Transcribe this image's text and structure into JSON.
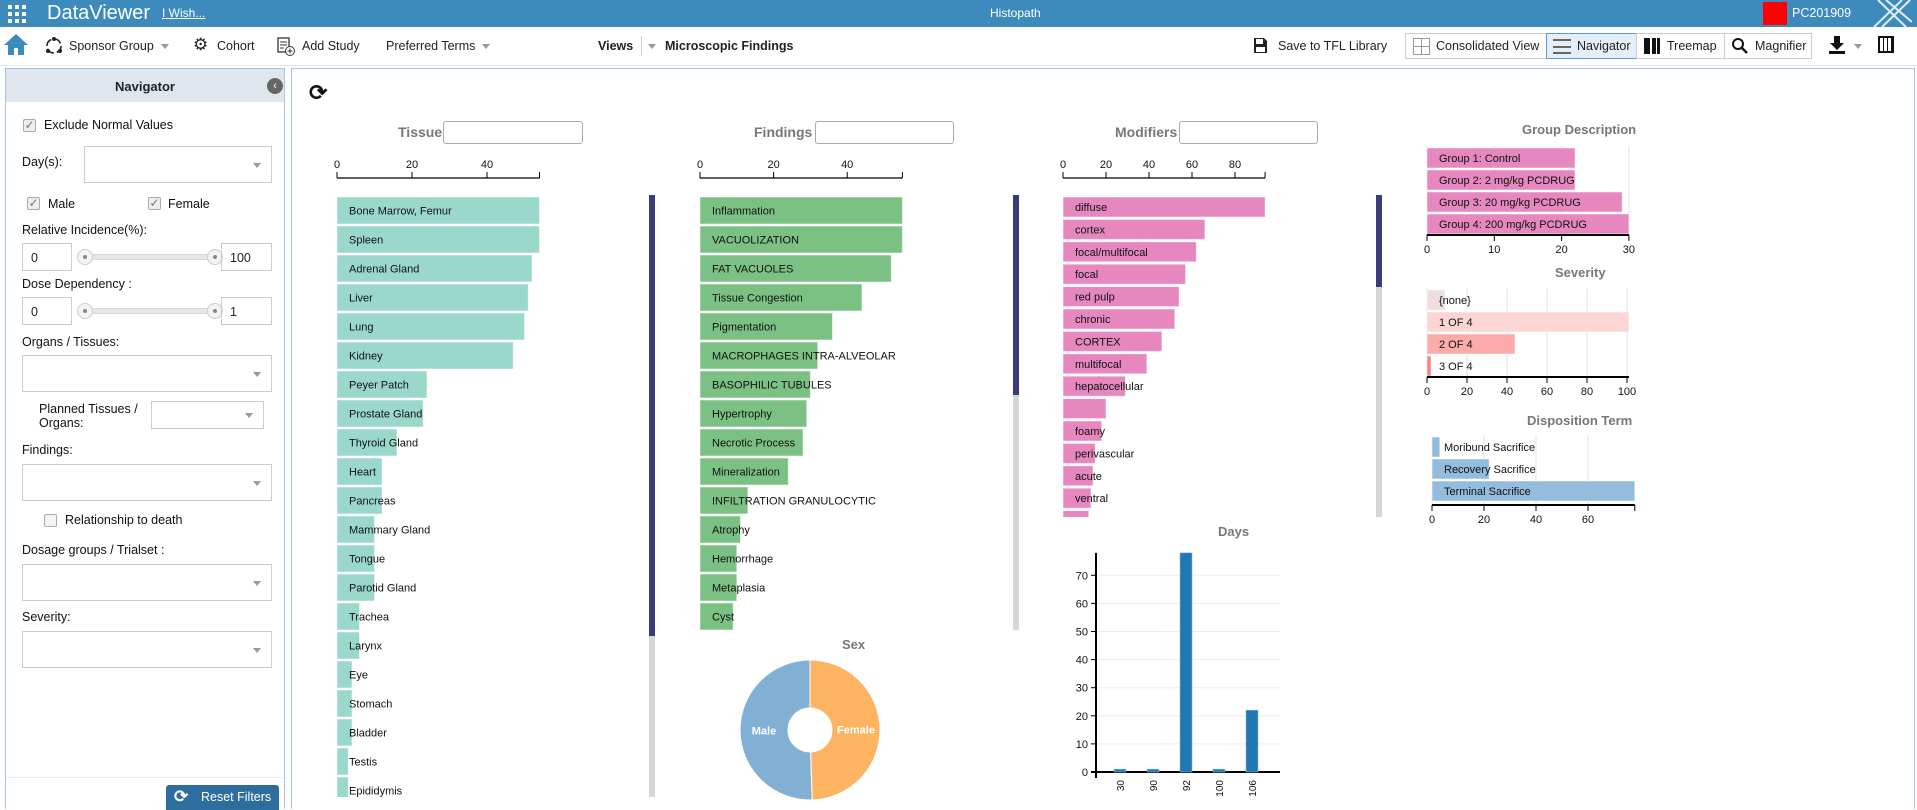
{
  "app": {
    "title": "DataViewer",
    "wish_link": "I Wish...",
    "page": "Histopath",
    "user": "PC201909",
    "user_color": "#ff0000",
    "brand_color": "#3d8bbd"
  },
  "toolbar": {
    "sponsor_group": "Sponsor Group",
    "cohort": "Cohort",
    "add_study": "Add Study",
    "preferred_terms": "Preferred Terms",
    "views_label": "Views",
    "view_selected": "Microscopic Findings",
    "save_tfl": "Save to TFL Library",
    "consolidated": "Consolidated View",
    "navigator": "Navigator",
    "treemap": "Treemap",
    "magnifier": "Magnifier",
    "active_view": "Navigator"
  },
  "navigator": {
    "title": "Navigator",
    "exclude_normal": {
      "label": "Exclude Normal Values",
      "checked": true
    },
    "days_label": "Day(s):",
    "male": {
      "label": "Male",
      "checked": true
    },
    "female": {
      "label": "Female",
      "checked": true
    },
    "relative_incidence": {
      "label": "Relative Incidence(%):",
      "min": "0",
      "max": "100"
    },
    "dose_dependency": {
      "label": "Dose Dependency :",
      "min": "0",
      "max": "1"
    },
    "organs_label": "Organs / Tissues:",
    "planned_label": "Planned Tissues / Organs:",
    "findings_label": "Findings:",
    "relationship": {
      "label": "Relationship to death",
      "checked": false
    },
    "dosage_label": "Dosage groups / Trialset :",
    "severity_label": "Severity:",
    "reset": "Reset Filters"
  },
  "chart_data": [
    {
      "id": "tissue",
      "type": "bar",
      "orientation": "horizontal",
      "title": "Tissue",
      "color": "#9ad8cc",
      "xticks": [
        0,
        20,
        40
      ],
      "xlim": [
        0,
        54
      ],
      "categories": [
        "Bone Marrow, Femur",
        "Spleen",
        "Adrenal Gland",
        "Liver",
        "Lung",
        "Kidney",
        "Peyer Patch",
        "Prostate Gland",
        "Thyroid Gland",
        "Heart",
        "Pancreas",
        "Mammary Gland",
        "Tongue",
        "Parotid Gland",
        "Trachea",
        "Larynx",
        "Eye",
        "Stomach",
        "Bladder",
        "Testis",
        "Epididymis"
      ],
      "values": [
        54,
        54,
        52,
        51,
        50,
        47,
        24,
        23,
        16,
        12,
        12,
        10,
        10,
        10,
        6,
        6,
        4,
        4,
        4,
        3,
        3
      ]
    },
    {
      "id": "findings",
      "type": "bar",
      "orientation": "horizontal",
      "title": "Findings",
      "color": "#7cc184",
      "xticks": [
        0,
        20,
        40
      ],
      "xlim": [
        0,
        55
      ],
      "categories": [
        "Inflammation",
        "VACUOLIZATION",
        "FAT VACUOLES",
        "Tissue Congestion",
        "Pigmentation",
        "MACROPHAGES INTRA-ALVEOLAR",
        "BASOPHILIC TUBULES",
        "Hypertrophy",
        "Necrotic Process",
        "Mineralization",
        "INFILTRATION GRANULOCYTIC",
        "Atrophy",
        "Hemorrhage",
        "Metaplasia",
        "Cyst"
      ],
      "values": [
        55,
        55,
        52,
        44,
        36,
        32,
        30,
        29,
        28,
        24,
        13,
        11,
        10,
        10,
        9
      ]
    },
    {
      "id": "modifiers",
      "type": "bar",
      "orientation": "horizontal",
      "title": "Modifiers",
      "color": "#e687c0",
      "xticks": [
        0,
        20,
        40,
        60,
        80
      ],
      "xlim": [
        0,
        94
      ],
      "categories": [
        "diffuse",
        "cortex",
        "focal/multifocal",
        "focal",
        "red pulp",
        "chronic",
        "CORTEX",
        "multifocal",
        "hepatocellular",
        "",
        "foamy",
        "perivascular",
        "acute",
        "ventral",
        ""
      ],
      "values": [
        94,
        66,
        62,
        57,
        54,
        52,
        46,
        39,
        29,
        20,
        18,
        15,
        14,
        13,
        12
      ]
    },
    {
      "id": "sex",
      "type": "pie",
      "title": "Sex",
      "categories": [
        "Male",
        "Female"
      ],
      "values": [
        50.5,
        49.5
      ],
      "colors": [
        "#82b0d4",
        "#fdb462"
      ]
    },
    {
      "id": "days",
      "type": "bar",
      "title": "Days",
      "color": "#1f77b4",
      "categories": [
        "30",
        "90",
        "92",
        "100",
        "106"
      ],
      "values": [
        1,
        1,
        78,
        1,
        22
      ],
      "yticks": [
        0,
        10,
        20,
        30,
        40,
        50,
        60,
        70
      ],
      "ylim": [
        0,
        78
      ]
    },
    {
      "id": "group",
      "type": "bar",
      "orientation": "horizontal",
      "title": "Group Description",
      "color": "#e687c0",
      "categories": [
        "Group 1: Control",
        "Group 2: 2 mg/kg PCDRUG",
        "Group 3: 20 mg/kg PCDRUG",
        "Group 4: 200 mg/kg PCDRUG"
      ],
      "values": [
        22,
        22,
        29,
        30
      ],
      "xticks": [
        0,
        10,
        20,
        30
      ],
      "xlim": [
        0,
        30
      ]
    },
    {
      "id": "severity",
      "type": "bar",
      "orientation": "horizontal",
      "title": "Severity",
      "colors": [
        "#f0dede",
        "#fdd5d5",
        "#fdaaaa",
        "#fb8080"
      ],
      "categories": [
        "{none}",
        "1 OF 4",
        "2 OF 4",
        "3 OF 4"
      ],
      "values": [
        9,
        101,
        44,
        2
      ],
      "xticks": [
        0,
        20,
        40,
        60,
        80,
        100
      ],
      "xlim": [
        0,
        101
      ]
    },
    {
      "id": "disposition",
      "type": "bar",
      "orientation": "horizontal",
      "title": "Disposition Term",
      "color": "#94bcdc",
      "categories": [
        "Moribund Sacrifice",
        "Recovery Sacrifice",
        "Terminal Sacrifice"
      ],
      "values": [
        3,
        22,
        78
      ],
      "xticks": [
        0,
        20,
        40,
        60
      ],
      "xlim": [
        0,
        78
      ]
    }
  ]
}
